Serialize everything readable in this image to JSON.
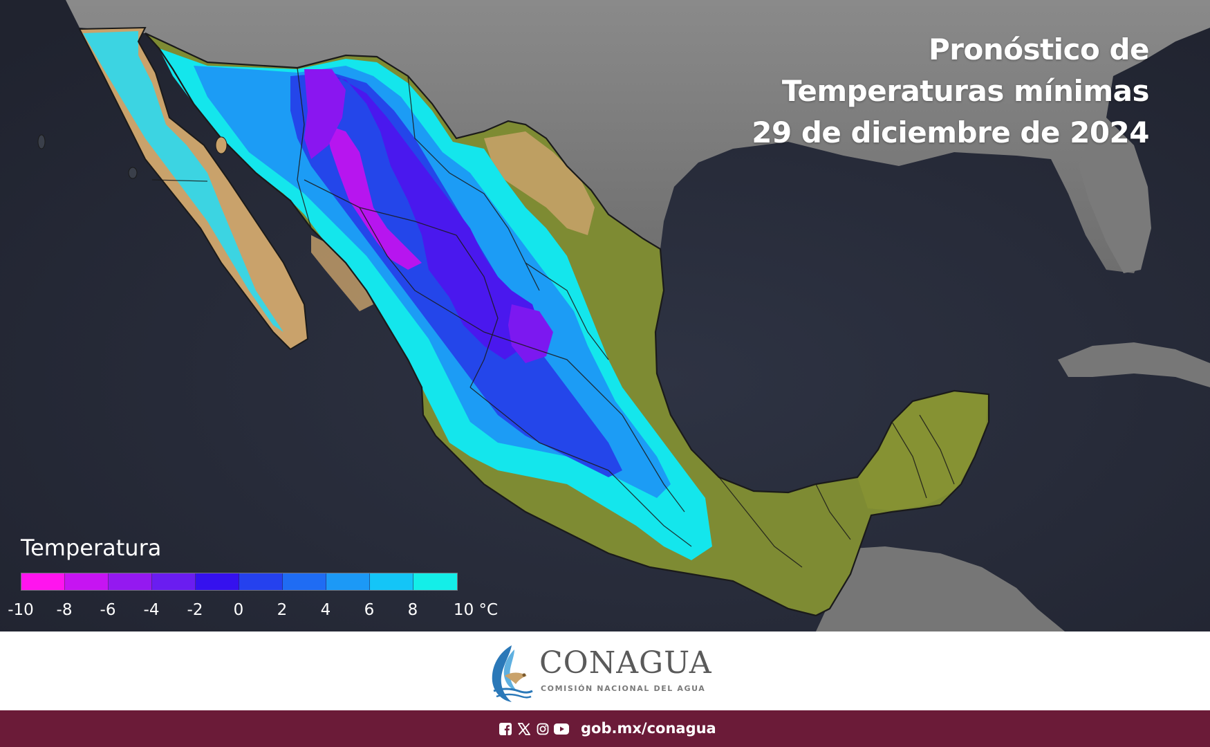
{
  "title": {
    "line1": "Pronóstico de",
    "line2": "Temperaturas mínimas",
    "line3": "29 de diciembre de 2024"
  },
  "legend": {
    "title": "Temperatura",
    "unit": "°C",
    "bins": [
      {
        "from": -10,
        "to": -8,
        "color": "#ff14ee"
      },
      {
        "from": -8,
        "to": -6,
        "color": "#c614f2"
      },
      {
        "from": -6,
        "to": -4,
        "color": "#9419f0"
      },
      {
        "from": -4,
        "to": -2,
        "color": "#6a1df0"
      },
      {
        "from": -2,
        "to": 0,
        "color": "#3511ee"
      },
      {
        "from": 0,
        "to": 2,
        "color": "#2541ee"
      },
      {
        "from": 2,
        "to": 4,
        "color": "#1f6cf3"
      },
      {
        "from": 4,
        "to": 6,
        "color": "#1c99f6"
      },
      {
        "from": 6,
        "to": 8,
        "color": "#14c5f7"
      },
      {
        "from": 8,
        "to": 10,
        "color": "#14eee8"
      }
    ],
    "ticks": [
      "-10",
      "-8",
      "-6",
      "-4",
      "-2",
      "0",
      "2",
      "4",
      "6",
      "8",
      "10 °C"
    ]
  },
  "colors": {
    "ocean": "#262a38",
    "land_gray": "#7b7b7b",
    "land_green": "#7e8b33",
    "land_tan": "#c9a26b",
    "footer": "#6b1b38"
  },
  "logo": {
    "name": "CONAGUA",
    "subtitle": "COMISIÓN NACIONAL DEL AGUA",
    "icon": "conagua-eagle-water-icon"
  },
  "footer": {
    "icons": [
      "facebook-icon",
      "x-icon",
      "instagram-icon",
      "youtube-icon"
    ],
    "url": "gob.mx/conagua"
  }
}
